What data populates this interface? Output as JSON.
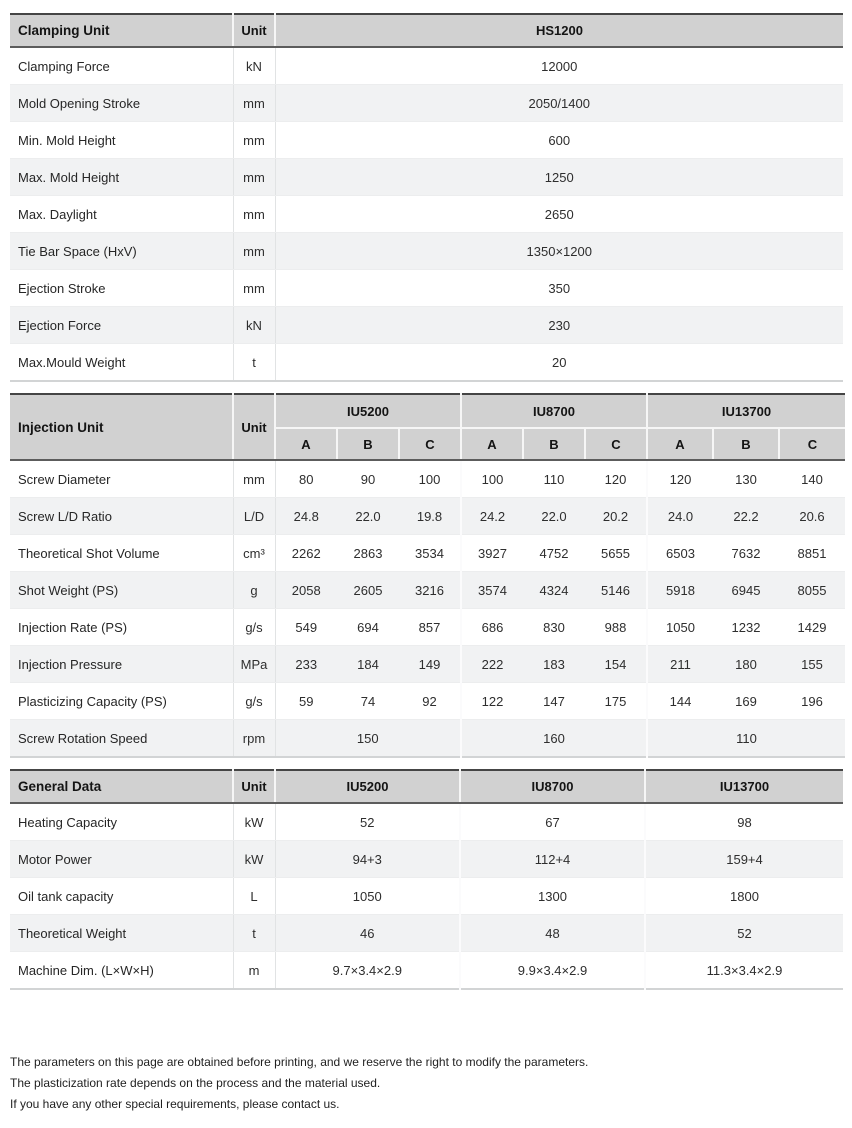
{
  "colors": {
    "header_bg": "#d1d1d1",
    "alt_row_bg": "#f1f2f3",
    "table_top_border": "#454545",
    "header_divider": "#5c5c5c",
    "table_bottom_border": "#d2d4d5"
  },
  "clamping_table": {
    "title": "Clamping Unit",
    "unit_label": "Unit",
    "model": "HS1200",
    "rows": [
      {
        "label": "Clamping Force",
        "unit": "kN",
        "value": "12000"
      },
      {
        "label": "Mold Opening Stroke",
        "unit": "mm",
        "value": "2050/1400"
      },
      {
        "label": "Min. Mold Height",
        "unit": "mm",
        "value": "600"
      },
      {
        "label": "Max. Mold Height",
        "unit": "mm",
        "value": "1250"
      },
      {
        "label": "Max. Daylight",
        "unit": "mm",
        "value": "2650"
      },
      {
        "label": "Tie Bar Space (HxV)",
        "unit": "mm",
        "value": "1350×1200"
      },
      {
        "label": "Ejection Stroke",
        "unit": "mm",
        "value": "350"
      },
      {
        "label": "Ejection Force",
        "unit": "kN",
        "value": "230"
      },
      {
        "label": "Max.Mould Weight",
        "unit": "t",
        "value": "20"
      }
    ]
  },
  "injection_table": {
    "title": "Injection Unit",
    "unit_label": "Unit",
    "groups": [
      "IU5200",
      "IU8700",
      "IU13700"
    ],
    "subcols": [
      "A",
      "B",
      "C"
    ],
    "rows": [
      {
        "label": "Screw Diameter",
        "unit": "mm",
        "values": [
          "80",
          "90",
          "100",
          "100",
          "110",
          "120",
          "120",
          "130",
          "140"
        ]
      },
      {
        "label": "Screw L/D Ratio",
        "unit": "L/D",
        "values": [
          "24.8",
          "22.0",
          "19.8",
          "24.2",
          "22.0",
          "20.2",
          "24.0",
          "22.2",
          "20.6"
        ]
      },
      {
        "label": "Theoretical Shot Volume",
        "unit": "cm³",
        "values": [
          "2262",
          "2863",
          "3534",
          "3927",
          "4752",
          "5655",
          "6503",
          "7632",
          "8851"
        ]
      },
      {
        "label": "Shot Weight (PS)",
        "unit": "g",
        "values": [
          "2058",
          "2605",
          "3216",
          "3574",
          "4324",
          "5146",
          "5918",
          "6945",
          "8055"
        ]
      },
      {
        "label": "Injection Rate (PS)",
        "unit": "g/s",
        "values": [
          "549",
          "694",
          "857",
          "686",
          "830",
          "988",
          "1050",
          "1232",
          "1429"
        ]
      },
      {
        "label": "Injection Pressure",
        "unit": "MPa",
        "values": [
          "233",
          "184",
          "149",
          "222",
          "183",
          "154",
          "211",
          "180",
          "155"
        ]
      },
      {
        "label": "Plasticizing Capacity (PS)",
        "unit": "g/s",
        "values": [
          "59",
          "74",
          "92",
          "122",
          "147",
          "175",
          "144",
          "169",
          "196"
        ]
      },
      {
        "label": "Screw Rotation Speed",
        "unit": "rpm",
        "merged": true,
        "values": [
          "150",
          "160",
          "110"
        ]
      }
    ]
  },
  "general_table": {
    "title": "General Data",
    "unit_label": "Unit",
    "columns": [
      "IU5200",
      "IU8700",
      "IU13700"
    ],
    "rows": [
      {
        "label": "Heating Capacity",
        "unit": "kW",
        "values": [
          "52",
          "67",
          "98"
        ]
      },
      {
        "label": "Motor Power",
        "unit": "kW",
        "values": [
          "94+3",
          "112+4",
          "159+4"
        ]
      },
      {
        "label": "Oil tank capacity",
        "unit": "L",
        "values": [
          "1050",
          "1300",
          "1800"
        ]
      },
      {
        "label": "Theoretical Weight",
        "unit": "t",
        "values": [
          "46",
          "48",
          "52"
        ]
      },
      {
        "label": "Machine Dim.  (L×W×H)",
        "unit": "m",
        "values": [
          "9.7×3.4×2.9",
          "9.9×3.4×2.9",
          "11.3×3.4×2.9"
        ]
      }
    ]
  },
  "footnotes": {
    "lines": [
      "The parameters on this page are obtained before printing, and we reserve the right to modify the parameters.",
      "The plasticization rate depends on the process and the material used.",
      "If you have any other special requirements, please contact us."
    ]
  }
}
